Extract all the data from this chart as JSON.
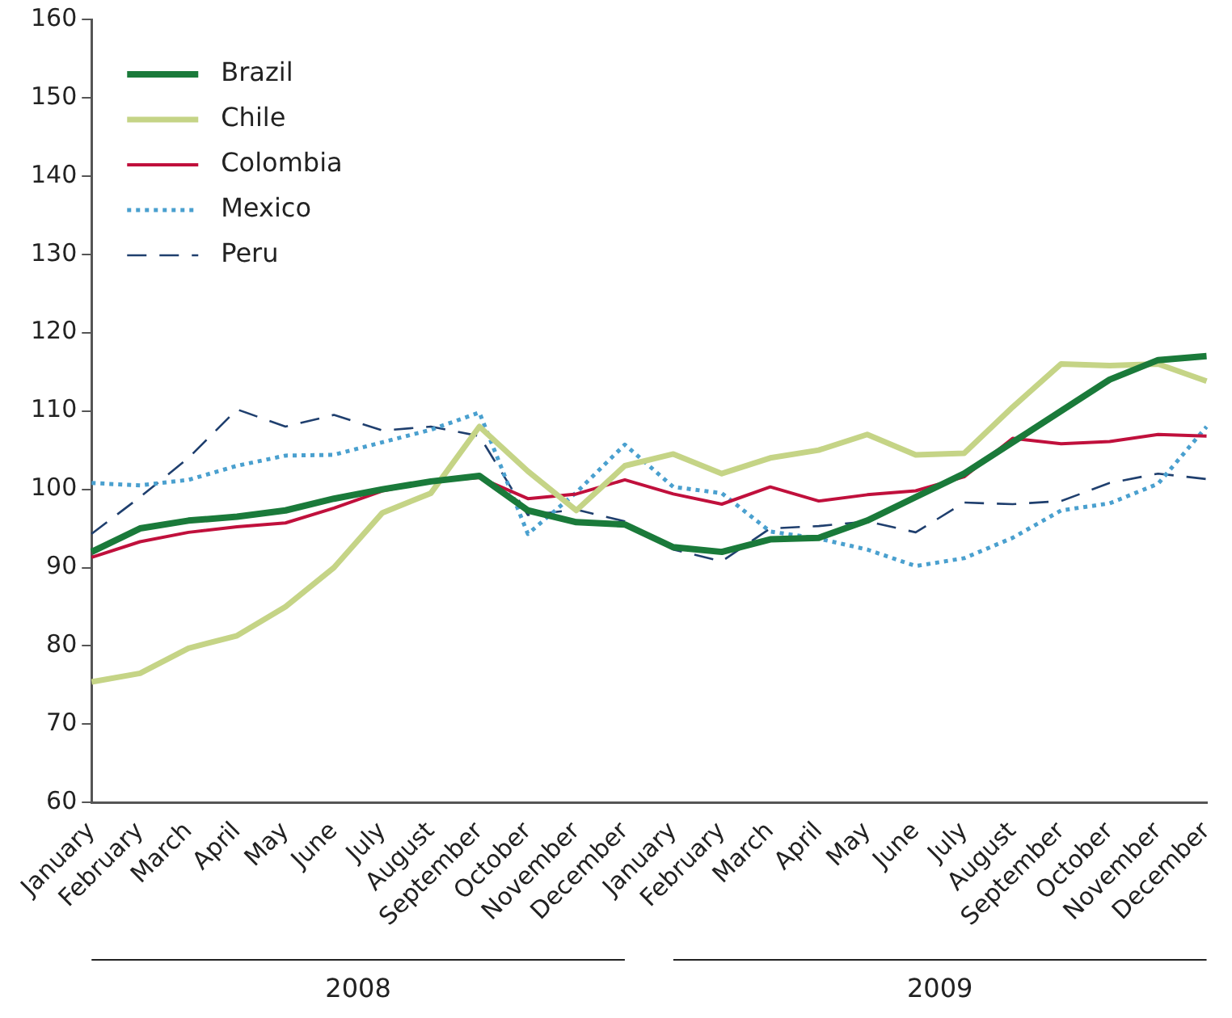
{
  "chart_data": {
    "type": "line",
    "categories": [
      "January",
      "February",
      "March",
      "April",
      "May",
      "June",
      "July",
      "August",
      "September",
      "October",
      "November",
      "December",
      "January",
      "February",
      "March",
      "April",
      "May",
      "June",
      "July",
      "August",
      "September",
      "October",
      "November",
      "December"
    ],
    "series": [
      {
        "name": "Brazil",
        "color": "#1a7a3a",
        "line_style": "solid",
        "values": [
          92,
          95,
          96,
          96.5,
          97.3,
          98.8,
          100,
          101,
          101.7,
          97.3,
          95.8,
          95.5,
          92.6,
          92,
          93.6,
          93.8,
          96,
          99,
          102,
          106,
          110,
          114,
          116.5,
          117
        ]
      },
      {
        "name": "Chile",
        "color": "#c5d486",
        "line_style": "solid",
        "values": [
          75.4,
          76.5,
          79.7,
          81.3,
          85,
          90,
          97,
          99.5,
          108,
          102.3,
          97.3,
          103,
          104.5,
          102,
          104,
          105,
          107,
          104.4,
          104.6,
          110.5,
          116,
          115.8,
          116,
          113.8
        ]
      },
      {
        "name": "Colombia",
        "color": "#c0103c",
        "line_style": "solid",
        "values": [
          91.3,
          93.3,
          94.5,
          95.2,
          95.7,
          97.6,
          99.8,
          101,
          101.5,
          98.8,
          99.4,
          101.2,
          99.4,
          98.1,
          100.3,
          98.5,
          99.3,
          99.8,
          101.6,
          106.5,
          105.8,
          106.1,
          107,
          106.8
        ]
      },
      {
        "name": "Mexico",
        "color": "#4aa0cf",
        "line_style": "dotted",
        "values": [
          100.8,
          100.5,
          101.2,
          103,
          104.3,
          104.4,
          106,
          107.6,
          109.8,
          94.3,
          99.6,
          105.7,
          100.3,
          99.5,
          94.6,
          93.7,
          92.3,
          90.2,
          91.2,
          93.8,
          97.3,
          98.2,
          100.7,
          108
        ]
      },
      {
        "name": "Peru",
        "color": "#1f3f6e",
        "line_style": "dashed",
        "values": [
          94.3,
          99,
          104,
          110.2,
          108,
          109.5,
          107.5,
          108,
          106.8,
          96.7,
          97.4,
          95.9,
          92.3,
          90.8,
          95,
          95.3,
          95.9,
          94.5,
          98.3,
          98.1,
          98.5,
          100.8,
          102,
          101.3
        ]
      }
    ],
    "annotations": [
      "2008",
      "2009"
    ],
    "ylim": [
      60,
      160
    ],
    "yticks": [
      60,
      70,
      80,
      90,
      100,
      110,
      120,
      130,
      140,
      150,
      160
    ],
    "grid": false,
    "legend": "top left",
    "marker": "none"
  }
}
